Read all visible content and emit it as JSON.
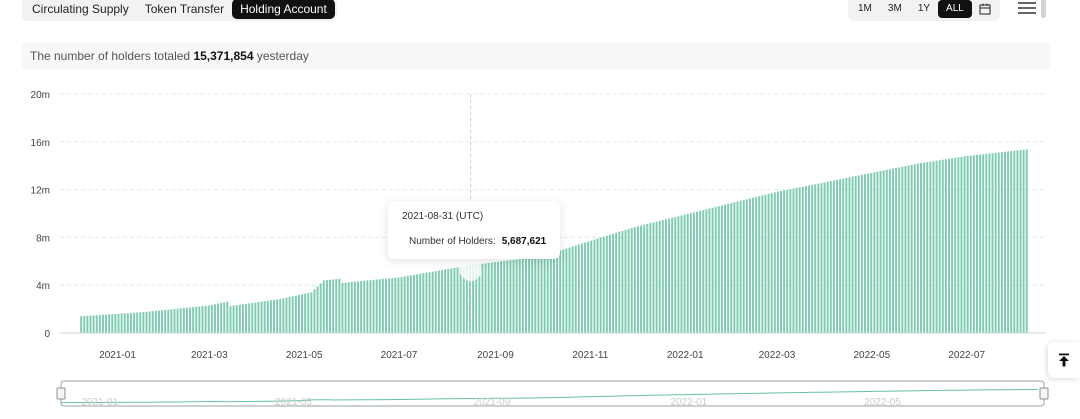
{
  "tabs": [
    {
      "label": "Circulating Supply",
      "active": false
    },
    {
      "label": "Token Transfer",
      "active": false
    },
    {
      "label": "Holding Account",
      "active": true
    }
  ],
  "ranges": [
    {
      "label": "1M",
      "active": false
    },
    {
      "label": "3M",
      "active": false
    },
    {
      "label": "1Y",
      "active": false
    },
    {
      "label": "ALL",
      "active": true
    }
  ],
  "icons": {
    "calendar": "calendar-icon",
    "menu": "hamburger-menu-icon",
    "back_to_top": "back-to-top-icon"
  },
  "summary": {
    "prefix": "The number of holders totaled",
    "value": "15,371,854",
    "suffix": "yesterday"
  },
  "tooltip": {
    "date": "2021-08-31 (UTC)",
    "label": "Number of Holders:",
    "value": "5,687,621"
  },
  "colors": {
    "bar": "#66c2a5",
    "active_tab": "#111111"
  },
  "chart_data": {
    "type": "bar",
    "series": [
      {
        "name": "Number of Holders"
      }
    ],
    "x_start": "2020-12-23",
    "x_end": "2022-08-24",
    "xlim": [
      "2020-12-10",
      "2022-09-05"
    ],
    "ylim": [
      0,
      20000000
    ],
    "y_ticks": [
      "0",
      "4m",
      "8m",
      "12m",
      "16m",
      "20m"
    ],
    "x_ticks": [
      "2021-01",
      "2021-03",
      "2021-05",
      "2021-07",
      "2021-09",
      "2021-11",
      "2022-01",
      "2022-03",
      "2022-05",
      "2022-07"
    ],
    "navigator_ticks": [
      "2021-01",
      "2021-05",
      "2021-09",
      "2022-01",
      "2022-05"
    ],
    "points": [
      {
        "x": "2020-12-23",
        "y": 1400000
      },
      {
        "x": "2021-02-01",
        "y": 1750000
      },
      {
        "x": "2021-03-15",
        "y": 2300000
      },
      {
        "x": "2021-03-28",
        "y": 2650000
      },
      {
        "x": "2021-03-29",
        "y": 2250000
      },
      {
        "x": "2021-04-30",
        "y": 2850000
      },
      {
        "x": "2021-05-20",
        "y": 3400000
      },
      {
        "x": "2021-05-28",
        "y": 4400000
      },
      {
        "x": "2021-06-08",
        "y": 4550000
      },
      {
        "x": "2021-06-09",
        "y": 4200000
      },
      {
        "x": "2021-07-15",
        "y": 4650000
      },
      {
        "x": "2021-08-31",
        "y": 5687621
      },
      {
        "x": "2021-10-15",
        "y": 6400000
      },
      {
        "x": "2021-11-15",
        "y": 7700000
      },
      {
        "x": "2021-12-15",
        "y": 8900000
      },
      {
        "x": "2022-01-15",
        "y": 9900000
      },
      {
        "x": "2022-02-15",
        "y": 10900000
      },
      {
        "x": "2022-03-15",
        "y": 11800000
      },
      {
        "x": "2022-04-15",
        "y": 12600000
      },
      {
        "x": "2022-05-15",
        "y": 13400000
      },
      {
        "x": "2022-06-15",
        "y": 14200000
      },
      {
        "x": "2022-07-15",
        "y": 14800000
      },
      {
        "x": "2022-08-24",
        "y": 15371854
      }
    ],
    "highlight": {
      "x": "2021-08-31",
      "y": 5687621
    },
    "grid": true,
    "legend": "none"
  }
}
